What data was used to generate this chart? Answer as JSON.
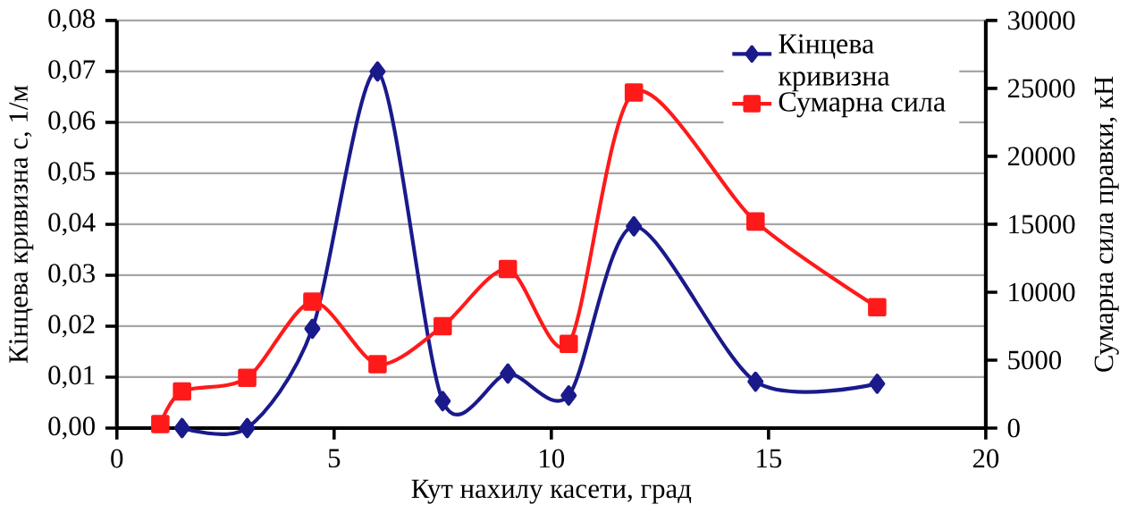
{
  "chart_data": {
    "type": "line",
    "xlabel": "Кут нахилу касети, град",
    "ylabel": "Кінцева кривизна с, 1/м",
    "y2label": "Сумарна сила правки, кН",
    "xlim": [
      0,
      20
    ],
    "xticks": [
      0,
      5,
      10,
      15,
      20
    ],
    "ylim": [
      0,
      0.08
    ],
    "yticks": [
      {
        "value": 0,
        "label": "0,00"
      },
      {
        "value": 0.01,
        "label": "0,01"
      },
      {
        "value": 0.02,
        "label": "0,02"
      },
      {
        "value": 0.03,
        "label": "0,03"
      },
      {
        "value": 0.04,
        "label": "0,04"
      },
      {
        "value": 0.05,
        "label": "0,05"
      },
      {
        "value": 0.06,
        "label": "0,06"
      },
      {
        "value": 0.07,
        "label": "0,07"
      },
      {
        "value": 0.08,
        "label": "0,08"
      }
    ],
    "y2lim": [
      0,
      30000
    ],
    "y2ticks": [
      0,
      5000,
      10000,
      15000,
      20000,
      25000,
      30000
    ],
    "grid": "y",
    "legend": "top right",
    "line_style": "solid",
    "series": [
      {
        "name": "Кінцева кривизна",
        "color": "#1a1a8c",
        "marker": "diamond",
        "x": [
          1.5,
          3,
          4.5,
          6,
          7.5,
          9,
          10.4,
          11.9,
          14.7,
          17.5
        ],
        "values": [
          0,
          0,
          0.0195,
          0.07,
          0.0053,
          0.0107,
          0.0064,
          0.0396,
          0.0091,
          0.0087
        ]
      },
      {
        "name": "Сумарна сила",
        "color": "#ff1a1a",
        "marker": "square",
        "axis": "y2",
        "x": [
          1,
          1.5,
          3,
          4.5,
          6,
          7.5,
          9,
          10.4,
          11.9,
          14.7,
          17.5
        ],
        "values": [
          300,
          2700,
          3700,
          9300,
          4700,
          7500,
          11700,
          6200,
          24700,
          15200,
          8900
        ]
      }
    ]
  }
}
